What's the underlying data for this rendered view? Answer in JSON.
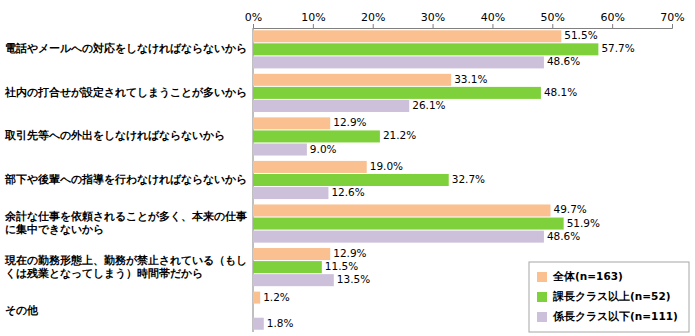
{
  "chart_data": {
    "type": "bar",
    "orientation": "horizontal",
    "categories": [
      "電話やメールへの対応をしなければならないから",
      "社内の打合せが設定されてしまうことが多いから",
      "取引先等への外出をしなければならないから",
      "部下や後輩への指導を行わなければならないから",
      "余計な仕事を依頼されることが多く、本来の仕事に集中できないから",
      "現在の勤務形態上、勤務が禁止されている（もしくは残業となってしまう）時間帯だから",
      "その他"
    ],
    "series": [
      {
        "name": "全体(n=163)",
        "color": "#fac090",
        "values": [
          51.5,
          33.1,
          12.9,
          19.0,
          49.7,
          12.9,
          1.2
        ],
        "value_labels": [
          "51.5%",
          "33.1%",
          "12.9%",
          "19.0%",
          "49.7%",
          "12.9%",
          "1.2%"
        ]
      },
      {
        "name": "課長クラス以上(n=52)",
        "color": "#7fd13b",
        "values": [
          57.7,
          48.1,
          21.2,
          32.7,
          51.9,
          11.5,
          null
        ],
        "value_labels": [
          "57.7%",
          "48.1%",
          "21.2%",
          "32.7%",
          "51.9%",
          "11.5%",
          null
        ]
      },
      {
        "name": "係長クラス以下(n=111)",
        "color": "#ccc0da",
        "values": [
          48.6,
          26.1,
          9.0,
          12.6,
          48.6,
          13.5,
          1.8
        ],
        "value_labels": [
          "48.6%",
          "26.1%",
          "9.0%",
          "12.6%",
          "48.6%",
          "13.5%",
          "1.8%"
        ]
      }
    ],
    "xlim": [
      0,
      70
    ],
    "xticks": [
      {
        "value": 0,
        "label": "0%"
      },
      {
        "value": 10,
        "label": "10%"
      },
      {
        "value": 20,
        "label": "20%"
      },
      {
        "value": 30,
        "label": "30%"
      },
      {
        "value": 40,
        "label": "40%"
      },
      {
        "value": 50,
        "label": "50%"
      },
      {
        "value": 60,
        "label": "60%"
      },
      {
        "value": 70,
        "label": "70%"
      }
    ],
    "grid": false,
    "legend": "lower right",
    "data_labels": true
  }
}
